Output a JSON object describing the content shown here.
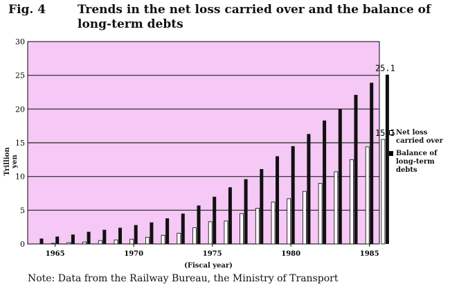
{
  "title": {
    "fig": "Fig. 4",
    "line1": "Trends in the net loss carried over and the balance of",
    "line2": "long-term debts"
  },
  "note": "Note: Data from the Railway Bureau, the Ministry of Transport",
  "colors": {
    "plot_bg": "#f5c8f5",
    "bar_white": "#ffffff",
    "bar_black": "#111111",
    "grid": "#222222"
  },
  "chart_data": {
    "type": "bar",
    "title": "Trends in the net loss carried over and the balance of long-term debts",
    "xlabel": "(Fiscal year)",
    "ylabel": "Trillion yen",
    "ylim": [
      0,
      30
    ],
    "yticks": [
      "0",
      "5",
      "10",
      "15",
      "20",
      "25",
      "30"
    ],
    "xticks": [
      "1965",
      "1970",
      "1975",
      "1980",
      "1985"
    ],
    "grid": true,
    "legend_position": "right",
    "categories": [
      1964,
      1965,
      1966,
      1967,
      1968,
      1969,
      1970,
      1971,
      1972,
      1973,
      1974,
      1975,
      1976,
      1977,
      1978,
      1979,
      1980,
      1981,
      1982,
      1983,
      1984,
      1985,
      1986
    ],
    "series": [
      {
        "name": "Net loss carried over",
        "values": [
          0.0,
          0.1,
          0.2,
          0.3,
          0.5,
          0.6,
          0.7,
          1.0,
          1.3,
          1.6,
          2.4,
          3.3,
          3.4,
          4.5,
          5.3,
          6.2,
          6.7,
          7.8,
          9.0,
          10.7,
          12.5,
          14.4,
          15.5
        ]
      },
      {
        "name": "Balance of long-term debts",
        "values": [
          0.8,
          1.1,
          1.4,
          1.8,
          2.1,
          2.4,
          2.8,
          3.2,
          3.8,
          4.5,
          5.7,
          7.0,
          8.4,
          9.6,
          11.1,
          13.0,
          14.5,
          16.3,
          18.3,
          20.0,
          22.1,
          23.9,
          25.1
        ]
      }
    ],
    "data_labels": [
      {
        "series": 0,
        "index": 22,
        "text": "15.5"
      },
      {
        "series": 1,
        "index": 22,
        "text": "25.1"
      }
    ],
    "legend": [
      {
        "label_lines": [
          "Net loss",
          "carried over"
        ],
        "series": 0
      },
      {
        "label_lines": [
          "Balance of",
          "long-term",
          "debts"
        ],
        "series": 1
      }
    ]
  }
}
